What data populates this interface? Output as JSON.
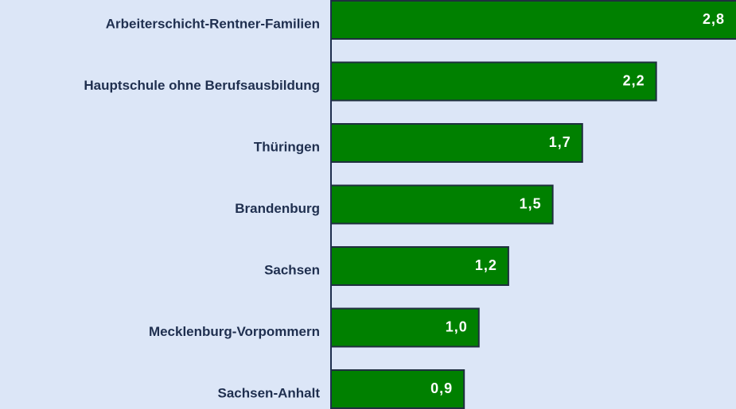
{
  "chart_data": {
    "type": "bar",
    "orientation": "horizontal",
    "categories": [
      "Arbeiterschicht-Rentner-Familien",
      "Hauptschule ohne Berufsausbildung",
      "Thüringen",
      "Brandenburg",
      "Sachsen",
      "Mecklenburg-Vorpommern",
      "Sachsen-Anhalt"
    ],
    "values": [
      2.8,
      2.2,
      1.7,
      1.5,
      1.2,
      1.0,
      0.9
    ],
    "value_labels": [
      "2,8",
      "2,2",
      "1,7",
      "1,5",
      "1,2",
      "1,0",
      "0,9"
    ],
    "color": "#008000",
    "xlim": [
      0,
      2.74
    ]
  }
}
